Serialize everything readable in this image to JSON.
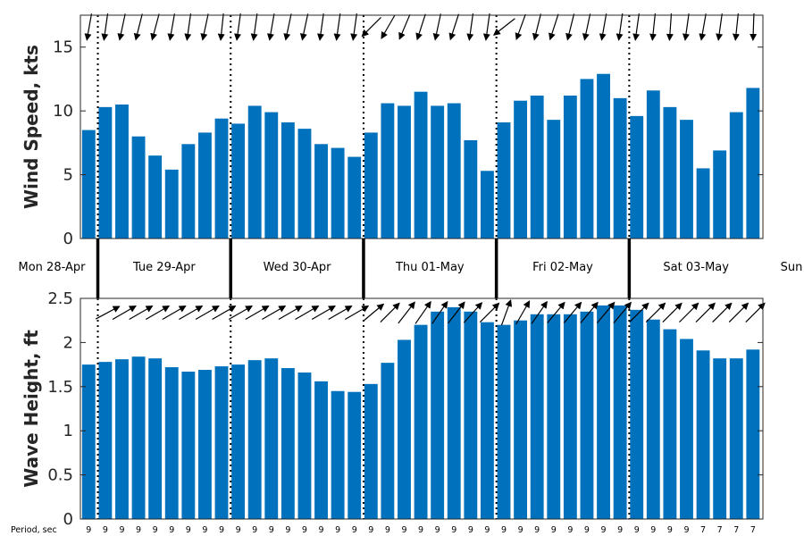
{
  "chart_data": {
    "type": "bar",
    "day_labels": [
      "Mon 28-Apr",
      "Tue 29-Apr",
      "Wed 30-Apr",
      "Thu 01-May",
      "Fri 02-May",
      "Sat 03-May",
      "Sun"
    ],
    "period_label": "Period, sec",
    "bar_color": "#0072BD",
    "wind": {
      "ylabel": "Wind Speed, kts",
      "ylim": [
        0,
        17.5
      ],
      "yticks": [
        "0",
        "5",
        "10",
        "15"
      ],
      "values": [
        8.5,
        10.3,
        10.5,
        8.0,
        6.5,
        5.4,
        7.4,
        8.3,
        9.4,
        9.0,
        10.4,
        9.9,
        9.1,
        8.6,
        7.4,
        7.1,
        6.4,
        8.3,
        10.6,
        10.4,
        11.5,
        10.4,
        10.6,
        7.7,
        5.3,
        9.1,
        10.8,
        11.2,
        9.3,
        11.2,
        12.5,
        12.9,
        11.0,
        9.6,
        11.6,
        10.3,
        9.3,
        5.5,
        6.9,
        9.9,
        11.8
      ],
      "direction_deg": [
        260,
        262,
        258,
        256,
        255,
        260,
        262,
        258,
        264,
        262,
        262,
        260,
        258,
        258,
        262,
        262,
        262,
        225,
        240,
        247,
        252,
        258,
        252,
        262,
        262,
        218,
        250,
        256,
        252,
        256,
        258,
        260,
        262,
        262,
        264,
        266,
        262,
        260,
        262,
        264,
        268
      ]
    },
    "wave": {
      "ylabel": "Wave Height, ft",
      "ylim": [
        0,
        2.5
      ],
      "yticks": [
        "0",
        "0.5",
        "1",
        "1.5",
        "2",
        "2.5"
      ],
      "values": [
        1.75,
        1.78,
        1.81,
        1.84,
        1.82,
        1.72,
        1.67,
        1.69,
        1.73,
        1.75,
        1.8,
        1.82,
        1.71,
        1.66,
        1.56,
        1.45,
        1.44,
        1.53,
        1.77,
        2.03,
        2.2,
        2.35,
        2.4,
        2.35,
        2.23,
        2.2,
        2.25,
        2.32,
        2.32,
        2.32,
        2.35,
        2.42,
        2.42,
        2.37,
        2.26,
        2.15,
        2.04,
        1.91,
        1.82,
        1.82,
        1.92
      ],
      "direction_deg": [
        30,
        28,
        30,
        30,
        30,
        30,
        30,
        30,
        30,
        30,
        30,
        30,
        30,
        30,
        30,
        30,
        30,
        40,
        45,
        52,
        55,
        55,
        52,
        48,
        45,
        70,
        60,
        55,
        50,
        50,
        50,
        50,
        50,
        45,
        45,
        45,
        45,
        45,
        45,
        45,
        45
      ],
      "period_sec": [
        "9",
        "9",
        "9",
        "9",
        "9",
        "9",
        "9",
        "9",
        "9",
        "9",
        "9",
        "9",
        "9",
        "9",
        "9",
        "9",
        "9",
        "9",
        "9",
        "9",
        "9",
        "9",
        "9",
        "9",
        "9",
        "9",
        "9",
        "9",
        "9",
        "9",
        "9",
        "9",
        "9",
        "9",
        "9",
        "9",
        "9",
        "7",
        "7",
        "7",
        "7"
      ]
    }
  }
}
